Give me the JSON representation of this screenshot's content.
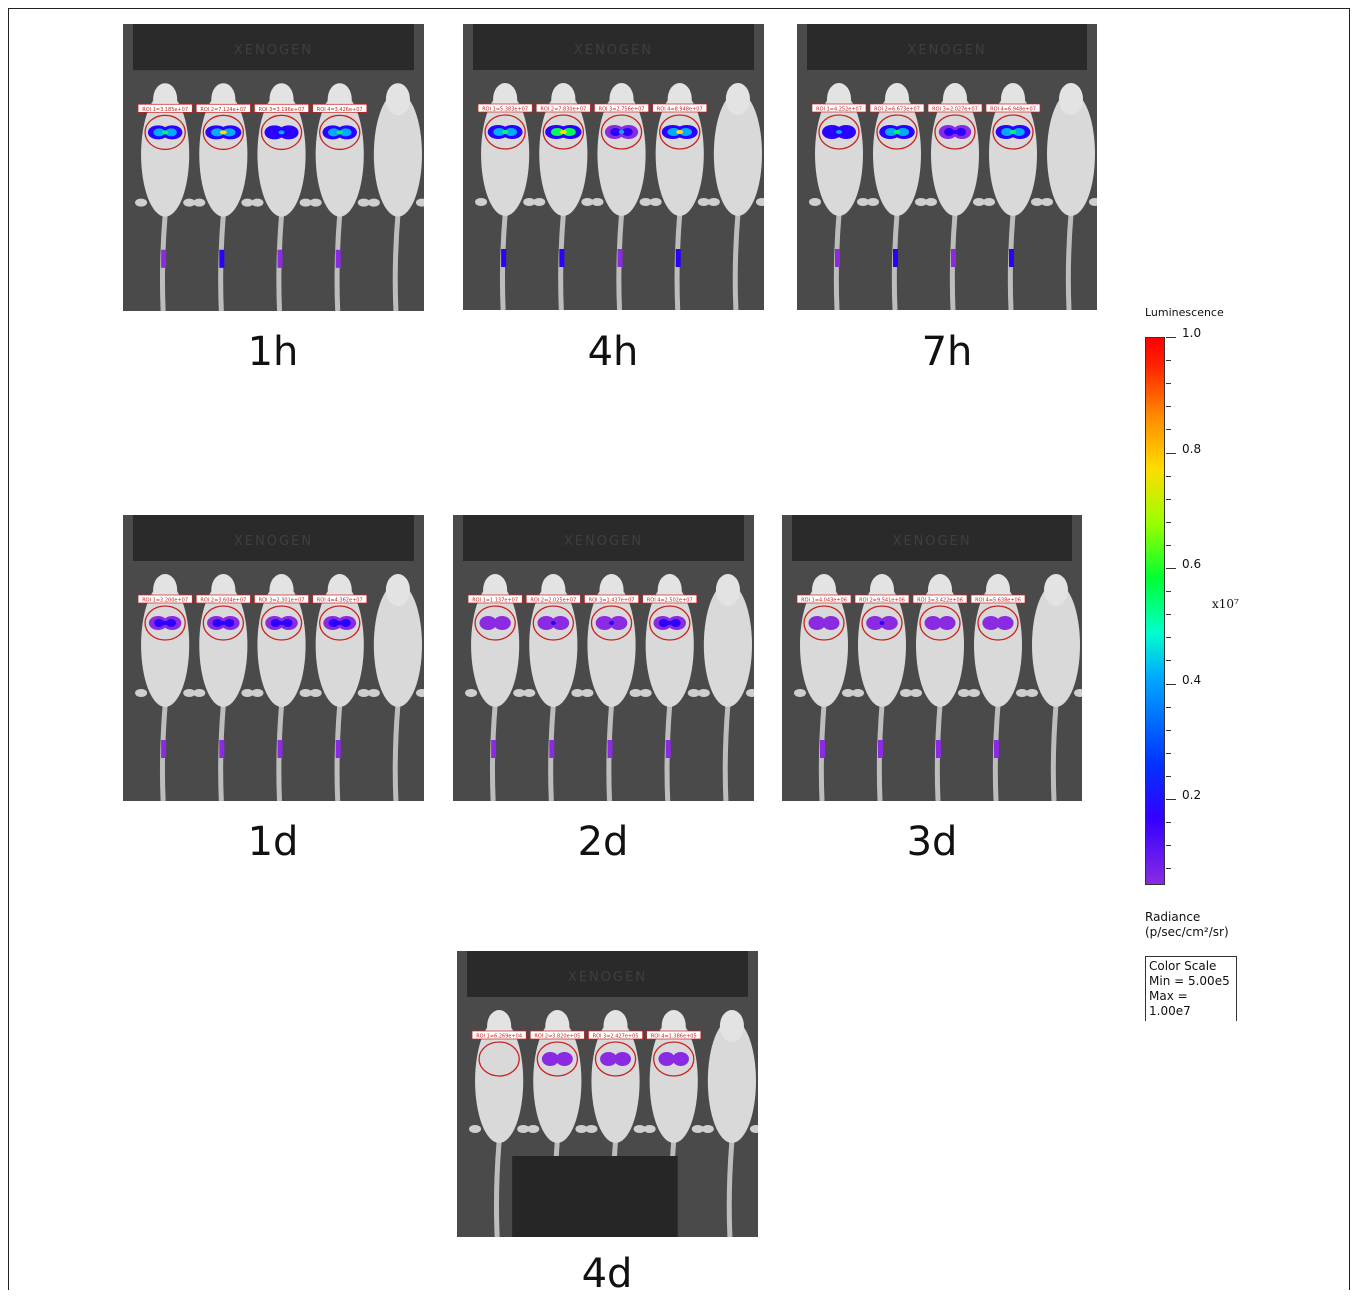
{
  "panels": [
    {
      "label": "1h",
      "rois": [
        "ROI 1=3.185e+07",
        "ROI 2=7.124e+07",
        "ROI 3=3.196e+07",
        "ROI 4=3.426e+07"
      ]
    },
    {
      "label": "4h",
      "rois": [
        "ROI 1=5.383e+07",
        "ROI 2=7.830e+07",
        "ROI 3=2.756e+07",
        "ROI 4=8.948e+07"
      ]
    },
    {
      "label": "7h",
      "rois": [
        "ROI 1=4.252e+07",
        "ROI 2=6.673e+07",
        "ROI 3=2.027e+07",
        "ROI 4=6.948e+07"
      ]
    },
    {
      "label": "1d",
      "rois": [
        "ROI 1=3.200e+07",
        "ROI 2=3.604e+07",
        "ROI 3=2.301e+07",
        "ROI 4=4.362e+07"
      ]
    },
    {
      "label": "2d",
      "rois": [
        "ROI 1=1.137e+07",
        "ROI 2=2.025e+07",
        "ROI 3=1.437e+07",
        "ROI 4=2.502e+07"
      ]
    },
    {
      "label": "3d",
      "rois": [
        "ROI 1=4.043e+06",
        "ROI 2=9.541e+06",
        "ROI 3=3.422e+06",
        "ROI 4=5.638e+06"
      ]
    },
    {
      "label": "4d",
      "rois": [
        "ROI 1=6.269e+04",
        "ROI 2=3.820e+05",
        "ROI 3=2.427e+05",
        "ROI 4=1.386e+05"
      ]
    }
  ],
  "device_text": "XENOGEN",
  "colorbar": {
    "title": "Luminescence",
    "ticks": [
      "1.0",
      "0.8",
      "0.6",
      "0.4",
      "0.2"
    ],
    "exponent": "x10⁷",
    "units_line1": "Radiance",
    "units_line2": "(p/sec/cm²/sr)",
    "scale_title": "Color Scale",
    "scale_min": "Min = 5.00e5",
    "scale_max": "Max = 1.00e7",
    "gradient_colors": [
      "#8a2be2",
      "#0033ff",
      "#00aaff",
      "#00ff33",
      "#ffdd00",
      "#ff0000"
    ]
  }
}
